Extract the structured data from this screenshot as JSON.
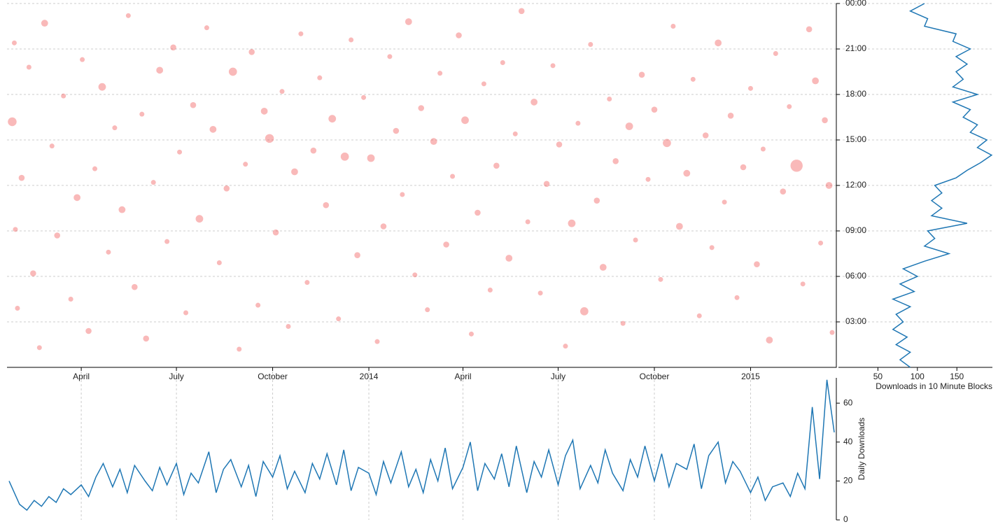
{
  "chart_data": [
    {
      "type": "scatter",
      "color": "#f05050",
      "xlim": [
        "2013-01-20",
        "2015-03-24"
      ],
      "xticks": [
        {
          "value": "2013-04",
          "label": "April"
        },
        {
          "value": "2013-07",
          "label": "July"
        },
        {
          "value": "2013-10",
          "label": "October"
        },
        {
          "value": "2014-01",
          "label": "2014"
        },
        {
          "value": "2014-04",
          "label": "April"
        },
        {
          "value": "2014-07",
          "label": "July"
        },
        {
          "value": "2014-10",
          "label": "October"
        },
        {
          "value": "2015-01",
          "label": "2015"
        }
      ],
      "ylim": [
        0,
        24
      ],
      "yticks": [
        {
          "value": 3,
          "label": "03:00"
        },
        {
          "value": 6,
          "label": "06:00"
        },
        {
          "value": 9,
          "label": "09:00"
        },
        {
          "value": 12,
          "label": "12:00"
        },
        {
          "value": 15,
          "label": "15:00"
        },
        {
          "value": 18,
          "label": "18:00"
        },
        {
          "value": 21,
          "label": "21:00"
        },
        {
          "value": 24,
          "label": "00:00"
        }
      ],
      "grid": true,
      "x": [
        "2013-01-25",
        "2013-01-28",
        "2013-01-30",
        "2013-01-27",
        "2013-02-03",
        "2013-02-10",
        "2013-02-14",
        "2013-02-20",
        "2013-02-25",
        "2013-03-04",
        "2013-03-09",
        "2013-03-15",
        "2013-03-22",
        "2013-03-28",
        "2013-04-02",
        "2013-04-08",
        "2013-04-14",
        "2013-04-21",
        "2013-04-27",
        "2013-05-03",
        "2013-05-10",
        "2013-05-16",
        "2013-05-22",
        "2013-05-29",
        "2013-06-02",
        "2013-06-09",
        "2013-06-15",
        "2013-06-22",
        "2013-06-28",
        "2013-07-04",
        "2013-07-10",
        "2013-07-17",
        "2013-07-23",
        "2013-07-30",
        "2013-08-05",
        "2013-08-11",
        "2013-08-18",
        "2013-08-24",
        "2013-08-30",
        "2013-09-05",
        "2013-09-11",
        "2013-09-17",
        "2013-09-23",
        "2013-09-28",
        "2013-10-04",
        "2013-10-10",
        "2013-10-16",
        "2013-10-22",
        "2013-10-28",
        "2013-11-03",
        "2013-11-09",
        "2013-11-15",
        "2013-11-21",
        "2013-11-27",
        "2013-12-03",
        "2013-12-09",
        "2013-12-15",
        "2013-12-21",
        "2013-12-27",
        "2014-01-03",
        "2014-01-09",
        "2014-01-15",
        "2014-01-21",
        "2014-01-27",
        "2014-02-02",
        "2014-02-08",
        "2014-02-14",
        "2014-02-20",
        "2014-02-26",
        "2014-03-04",
        "2014-03-10",
        "2014-03-16",
        "2014-03-22",
        "2014-03-28",
        "2014-04-03",
        "2014-04-09",
        "2014-04-15",
        "2014-04-21",
        "2014-04-27",
        "2014-05-03",
        "2014-05-09",
        "2014-05-15",
        "2014-05-21",
        "2014-05-27",
        "2014-06-02",
        "2014-06-08",
        "2014-06-14",
        "2014-06-20",
        "2014-06-26",
        "2014-07-02",
        "2014-07-08",
        "2014-07-14",
        "2014-07-20",
        "2014-07-26",
        "2014-08-01",
        "2014-08-07",
        "2014-08-13",
        "2014-08-19",
        "2014-08-25",
        "2014-09-01",
        "2014-09-07",
        "2014-09-13",
        "2014-09-19",
        "2014-09-25",
        "2014-10-01",
        "2014-10-07",
        "2014-10-13",
        "2014-10-19",
        "2014-10-25",
        "2014-11-01",
        "2014-11-07",
        "2014-11-13",
        "2014-11-19",
        "2014-11-25",
        "2014-12-01",
        "2014-12-07",
        "2014-12-13",
        "2014-12-19",
        "2014-12-25",
        "2015-01-01",
        "2015-01-07",
        "2015-01-13",
        "2015-01-19",
        "2015-01-25",
        "2015-02-01",
        "2015-02-07",
        "2015-02-14",
        "2015-02-20",
        "2015-02-26",
        "2015-03-04",
        "2015-03-09",
        "2015-03-13",
        "2015-03-17",
        "2015-03-20"
      ],
      "y": [
        16.2,
        9.1,
        3.9,
        21.4,
        12.5,
        19.8,
        6.2,
        1.3,
        22.7,
        14.6,
        8.7,
        17.9,
        4.5,
        11.2,
        20.3,
        2.4,
        13.1,
        18.5,
        7.6,
        15.8,
        10.4,
        23.2,
        5.3,
        16.7,
        1.9,
        12.2,
        19.6,
        8.3,
        21.1,
        14.2,
        3.6,
        17.3,
        9.8,
        22.4,
        15.7,
        6.9,
        11.8,
        19.5,
        1.2,
        13.4,
        20.8,
        4.1,
        16.9,
        15.1,
        8.9,
        18.2,
        2.7,
        12.9,
        22.0,
        5.6,
        14.3,
        19.1,
        10.7,
        16.4,
        3.2,
        13.9,
        21.6,
        7.4,
        17.8,
        13.8,
        1.7,
        9.3,
        20.5,
        15.6,
        11.4,
        22.8,
        6.1,
        17.1,
        3.8,
        14.9,
        19.4,
        8.1,
        12.6,
        21.9,
        16.3,
        2.2,
        10.2,
        18.7,
        5.1,
        13.3,
        20.1,
        7.2,
        15.4,
        23.5,
        9.6,
        17.5,
        4.9,
        12.1,
        19.9,
        14.7,
        1.4,
        9.5,
        16.1,
        3.7,
        21.3,
        11.0,
        6.6,
        17.7,
        13.6,
        2.9,
        15.9,
        8.4,
        19.3,
        12.4,
        17.0,
        5.8,
        14.8,
        22.5,
        9.3,
        12.8,
        19.0,
        3.4,
        15.3,
        7.9,
        21.4,
        10.9,
        16.6,
        4.6,
        13.2,
        18.4,
        6.8,
        14.4,
        1.8,
        20.7,
        11.6,
        17.2,
        13.3,
        5.5,
        22.3,
        18.9,
        8.2,
        16.3,
        12.0,
        2.3
      ],
      "sizes": [
        6,
        1,
        1,
        1,
        2,
        1,
        2,
        1,
        3,
        1,
        2,
        1,
        1,
        3,
        1,
        2,
        1,
        4,
        1,
        1,
        3,
        1,
        2,
        1,
        2,
        1,
        3,
        1,
        2,
        1,
        1,
        2,
        4,
        1,
        3,
        1,
        2,
        5,
        1,
        1,
        2,
        1,
        3,
        6,
        2,
        1,
        1,
        3,
        1,
        1,
        2,
        1,
        2,
        4,
        1,
        5,
        1,
        2,
        1,
        4,
        1,
        2,
        1,
        2,
        1,
        3,
        1,
        2,
        1,
        3,
        1,
        2,
        1,
        2,
        4,
        1,
        2,
        1,
        1,
        2,
        1,
        3,
        1,
        2,
        1,
        3,
        1,
        2,
        1,
        2,
        1,
        4,
        1,
        5,
        1,
        2,
        3,
        1,
        2,
        1,
        4,
        1,
        2,
        1,
        2,
        1,
        5,
        1,
        3,
        3,
        1,
        1,
        2,
        1,
        3,
        1,
        2,
        1,
        2,
        1,
        2,
        1,
        3,
        1,
        2,
        1,
        14,
        1,
        2,
        3,
        1,
        2,
        3,
        1
      ]
    },
    {
      "type": "line",
      "color": "#1f77b4",
      "x_label": "Downloads in 10 Minute Blocks",
      "xlim": [
        0,
        195
      ],
      "xticks": [
        50,
        100,
        150
      ],
      "y": [
        0,
        0.5,
        1,
        1.5,
        2,
        2.5,
        3,
        3.5,
        4,
        4.5,
        5,
        5.5,
        6,
        6.5,
        7,
        7.5,
        8,
        8.5,
        9,
        9.5,
        10,
        10.5,
        11,
        11.5,
        12,
        12.5,
        13,
        13.5,
        14,
        14.5,
        15,
        15.5,
        16,
        16.5,
        17,
        17.5,
        18,
        18.5,
        19,
        19.5,
        20,
        20.5,
        21,
        21.5,
        22,
        22.5,
        23,
        23.5,
        24
      ],
      "values": [
        91,
        78,
        91,
        73,
        87,
        69,
        82,
        73,
        91,
        69,
        96,
        78,
        100,
        82,
        109,
        140,
        109,
        122,
        113,
        163,
        118,
        131,
        118,
        131,
        122,
        149,
        163,
        180,
        194,
        176,
        188,
        167,
        176,
        158,
        167,
        145,
        176,
        145,
        158,
        149,
        163,
        149,
        167,
        145,
        149,
        109,
        113,
        91,
        109
      ]
    },
    {
      "type": "line",
      "color": "#1f77b4",
      "y_label": "Daily Downloads",
      "ylim": [
        0,
        73
      ],
      "yticks": [
        0,
        20,
        40,
        60
      ],
      "x": [
        "2013-01-22",
        "2013-02-01",
        "2013-02-08",
        "2013-02-15",
        "2013-02-22",
        "2013-03-01",
        "2013-03-08",
        "2013-03-15",
        "2013-03-22",
        "2013-04-01",
        "2013-04-08",
        "2013-04-15",
        "2013-04-22",
        "2013-05-01",
        "2013-05-08",
        "2013-05-15",
        "2013-05-22",
        "2013-06-01",
        "2013-06-08",
        "2013-06-15",
        "2013-06-22",
        "2013-07-01",
        "2013-07-08",
        "2013-07-15",
        "2013-07-22",
        "2013-08-01",
        "2013-08-08",
        "2013-08-15",
        "2013-08-22",
        "2013-09-01",
        "2013-09-08",
        "2013-09-15",
        "2013-09-22",
        "2013-10-01",
        "2013-10-08",
        "2013-10-15",
        "2013-10-22",
        "2013-11-01",
        "2013-11-08",
        "2013-11-15",
        "2013-11-22",
        "2013-12-01",
        "2013-12-08",
        "2013-12-15",
        "2013-12-22",
        "2014-01-01",
        "2014-01-08",
        "2014-01-15",
        "2014-01-22",
        "2014-02-01",
        "2014-02-08",
        "2014-02-15",
        "2014-02-22",
        "2014-03-01",
        "2014-03-08",
        "2014-03-15",
        "2014-03-22",
        "2014-04-01",
        "2014-04-08",
        "2014-04-15",
        "2014-04-22",
        "2014-05-01",
        "2014-05-08",
        "2014-05-15",
        "2014-05-22",
        "2014-06-01",
        "2014-06-08",
        "2014-06-15",
        "2014-06-22",
        "2014-07-01",
        "2014-07-08",
        "2014-07-15",
        "2014-07-22",
        "2014-08-01",
        "2014-08-08",
        "2014-08-15",
        "2014-08-22",
        "2014-09-01",
        "2014-09-08",
        "2014-09-15",
        "2014-09-22",
        "2014-10-01",
        "2014-10-08",
        "2014-10-15",
        "2014-10-22",
        "2014-11-01",
        "2014-11-08",
        "2014-11-15",
        "2014-11-22",
        "2014-12-01",
        "2014-12-08",
        "2014-12-15",
        "2014-12-22",
        "2015-01-01",
        "2015-01-08",
        "2015-01-15",
        "2015-01-22",
        "2015-02-01",
        "2015-02-08",
        "2015-02-15",
        "2015-02-22",
        "2015-03-01",
        "2015-03-08",
        "2015-03-15",
        "2015-03-22"
      ],
      "values": [
        20,
        8,
        5,
        10,
        7,
        12,
        9,
        16,
        13,
        18,
        12,
        22,
        29,
        17,
        26,
        14,
        28,
        20,
        15,
        27,
        18,
        29,
        13,
        24,
        19,
        35,
        14,
        26,
        31,
        17,
        28,
        12,
        30,
        22,
        33,
        16,
        25,
        14,
        29,
        21,
        34,
        18,
        36,
        15,
        27,
        24,
        13,
        30,
        19,
        35,
        17,
        26,
        14,
        31,
        20,
        37,
        16,
        27,
        40,
        15,
        29,
        21,
        34,
        17,
        38,
        14,
        30,
        22,
        36,
        18,
        33,
        41,
        16,
        28,
        19,
        36,
        24,
        15,
        31,
        22,
        38,
        20,
        34,
        17,
        29,
        26,
        39,
        16,
        33,
        40,
        19,
        30,
        25,
        14,
        22,
        10,
        17,
        19,
        12,
        24,
        16,
        58,
        21,
        72,
        45
      ]
    }
  ]
}
